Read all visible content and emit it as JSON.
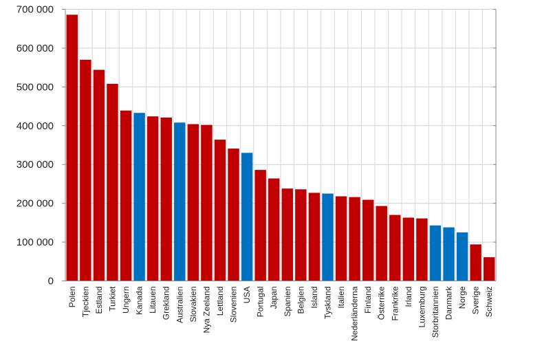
{
  "chart_data": {
    "type": "bar",
    "title": "",
    "xlabel": "",
    "ylabel": "",
    "ylim": [
      0,
      700000
    ],
    "yticks": [
      0,
      100000,
      200000,
      300000,
      400000,
      500000,
      600000,
      700000
    ],
    "ytick_labels": [
      "0",
      "100 000",
      "200 000",
      "300 000",
      "400 000",
      "500 000",
      "600 000",
      "700 000"
    ],
    "grid": true,
    "legend": "none",
    "colors": {
      "default": "#C00000",
      "highlight": "#0070C0"
    },
    "categories": [
      "Polen",
      "Tjeckien",
      "Estland",
      "Turkiet",
      "Ungern",
      "Kanada",
      "Litauen",
      "Grekland",
      "Australien",
      "Slovakien",
      "Nya Zeeland",
      "Lettland",
      "Slovenien",
      "USA",
      "Portugal",
      "Japan",
      "Spanien",
      "Belgien",
      "Island",
      "Tyskland",
      "Italien",
      "Nederländerna",
      "Finland",
      "Österrike",
      "Frankrike",
      "Irland",
      "Luxemburg",
      "Storbritannien",
      "Danmark",
      "Norge",
      "Sverige",
      "Schweiz"
    ],
    "values": [
      686000,
      570000,
      544000,
      508000,
      439000,
      433000,
      424000,
      421000,
      408000,
      404000,
      402000,
      364000,
      341000,
      330000,
      286000,
      264000,
      238000,
      236000,
      227000,
      225000,
      218000,
      216000,
      209000,
      193000,
      170000,
      163000,
      161000,
      143000,
      138000,
      125000,
      94000,
      61000
    ],
    "highlighted": [
      "Kanada",
      "Australien",
      "USA",
      "Tyskland",
      "Storbritannien",
      "Danmark",
      "Norge"
    ]
  }
}
